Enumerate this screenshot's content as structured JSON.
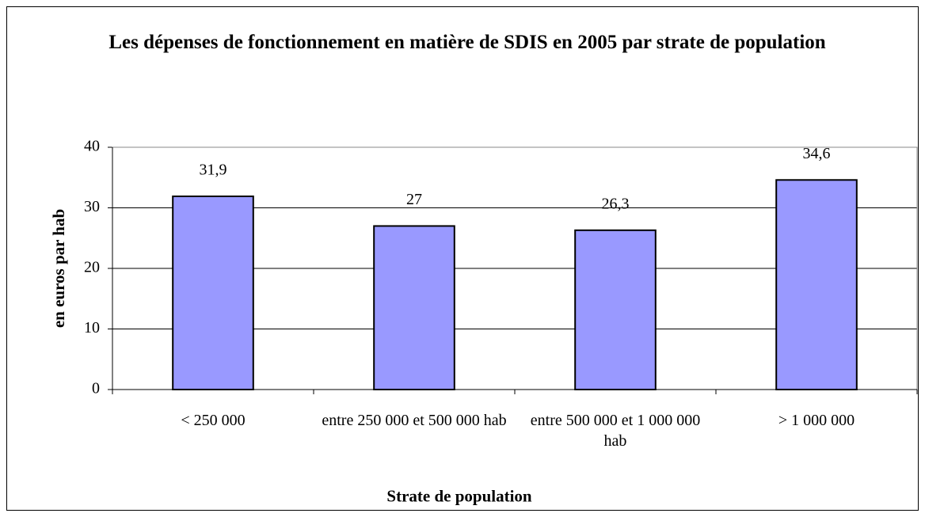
{
  "chart_data": {
    "type": "bar",
    "title": "Les dépenses de fonctionnement en matière de SDIS en 2005 par strate de population",
    "x_label": "Strate de population",
    "y_label": "en euros par hab",
    "categories": [
      "< 250 000",
      "entre 250 000 et 500 000 hab",
      "entre  500 000 et 1 000 000 hab",
      "> 1 000 000"
    ],
    "values": [
      31.9,
      27,
      26.3,
      34.6
    ],
    "value_labels": [
      "31,9",
      "27",
      "26,3",
      "34,6"
    ],
    "color": "#9999ff",
    "ylim": [
      0,
      40
    ],
    "yticks": [
      0,
      10,
      20,
      30,
      40
    ],
    "grid": true
  }
}
